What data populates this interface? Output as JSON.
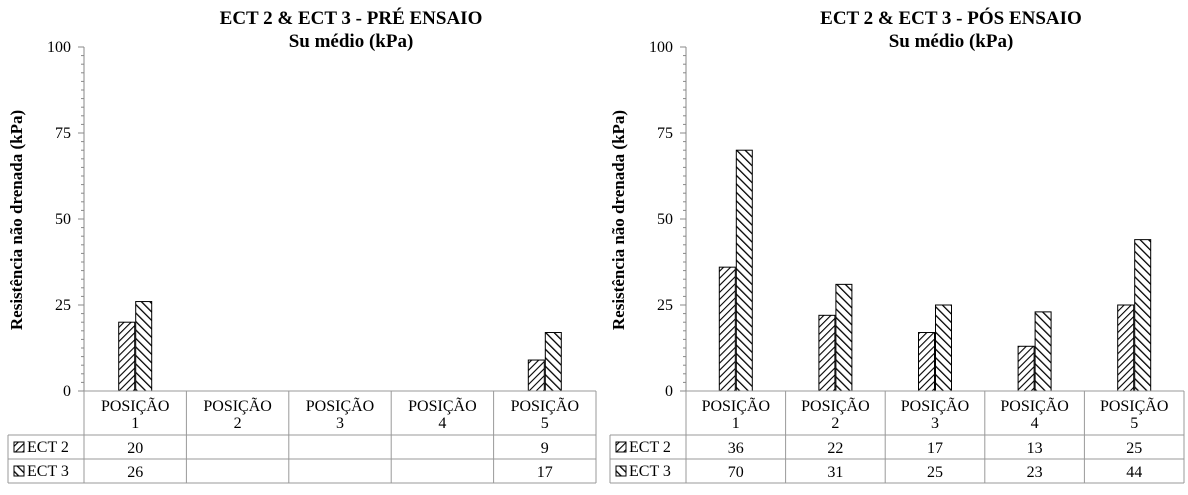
{
  "chart_data": [
    {
      "type": "bar",
      "title": "ECT 2 & ECT 3 - PRÉ ENSAIO",
      "subtitle": "Su médio (kPa)",
      "ylabel": "Resistência não drenada (kPa)",
      "xlabel": "",
      "ylim": [
        0,
        100
      ],
      "yticks": [
        0,
        25,
        50,
        75,
        100
      ],
      "categories": [
        [
          "POSIÇÃO",
          "1"
        ],
        [
          "POSIÇÃO",
          "2"
        ],
        [
          "POSIÇÃO",
          "3"
        ],
        [
          "POSIÇÃO",
          "4"
        ],
        [
          "POSIÇÃO",
          "5"
        ]
      ],
      "series": [
        {
          "name": "ECT 2",
          "values": [
            20,
            null,
            null,
            null,
            9
          ],
          "labels": [
            "20",
            "",
            "",
            "",
            "9"
          ]
        },
        {
          "name": "ECT 3",
          "values": [
            26,
            null,
            null,
            null,
            17
          ],
          "labels": [
            "26",
            "",
            "",
            "",
            "17"
          ]
        }
      ],
      "grid": false,
      "legend": "data-table"
    },
    {
      "type": "bar",
      "title": "ECT 2 & ECT 3 - PÓS ENSAIO",
      "subtitle": "Su médio (kPa)",
      "ylabel": "Resistência não drenada (kPa)",
      "xlabel": "",
      "ylim": [
        0,
        100
      ],
      "yticks": [
        0,
        25,
        50,
        75,
        100
      ],
      "categories": [
        [
          "POSIÇÃO",
          "1"
        ],
        [
          "POSIÇÃO",
          "2"
        ],
        [
          "POSIÇÃO",
          "3"
        ],
        [
          "POSIÇÃO",
          "4"
        ],
        [
          "POSIÇÃO",
          "5"
        ]
      ],
      "series": [
        {
          "name": "ECT 2",
          "values": [
            36,
            22,
            17,
            13,
            25
          ],
          "labels": [
            "36",
            "22",
            "17",
            "13",
            "25"
          ]
        },
        {
          "name": "ECT 3",
          "values": [
            70,
            31,
            25,
            23,
            44
          ],
          "labels": [
            "70",
            "31",
            "25",
            "23",
            "44"
          ]
        }
      ],
      "grid": false,
      "legend": "data-table"
    }
  ],
  "pattern_colors": {
    "line": "#000000",
    "fill": "#ffffff"
  }
}
